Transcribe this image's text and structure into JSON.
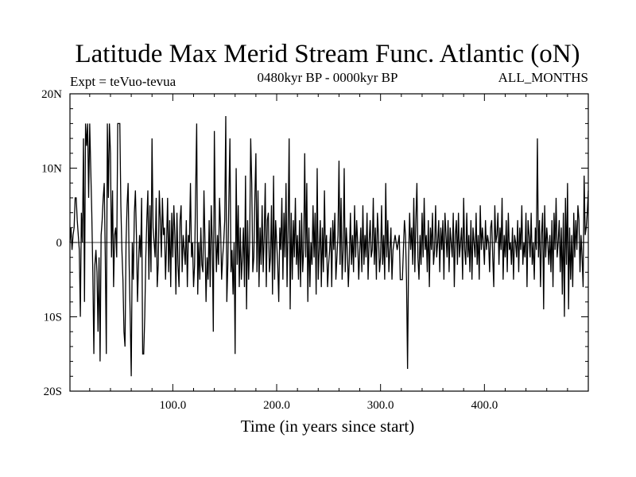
{
  "chart_data": {
    "type": "line",
    "title": "Latitude Max Merid Stream Func. Atlantic (oN)",
    "left_subtitle": "Expt = teVuo-tevua",
    "center_subtitle": "0480kyr BP - 0000kyr BP",
    "right_subtitle": "ALL_MONTHS",
    "xlabel": "Time (in years since start)",
    "ylabel": "",
    "xlim": [
      1,
      500
    ],
    "ylim": [
      -20,
      20
    ],
    "x_ticks": [
      {
        "value": 100,
        "label": "100.0"
      },
      {
        "value": 200,
        "label": "200.0"
      },
      {
        "value": 300,
        "label": "300.0"
      },
      {
        "value": 400,
        "label": "400.0"
      }
    ],
    "y_ticks": [
      {
        "value": 20,
        "label": "20N"
      },
      {
        "value": 10,
        "label": "10N"
      },
      {
        "value": 0,
        "label": "0"
      },
      {
        "value": -10,
        "label": "10S"
      },
      {
        "value": -20,
        "label": "20S"
      }
    ],
    "zero_line": true,
    "grid": false,
    "line_color": "#000000",
    "x_start": 1,
    "x_step": 1,
    "values": [
      0,
      2,
      -1,
      1,
      2,
      6,
      6,
      3,
      1,
      -1,
      -10,
      4,
      0,
      14,
      -8,
      16,
      13,
      16,
      6,
      16,
      10,
      4,
      -4,
      -15,
      -3,
      -1,
      -4,
      -12,
      -2,
      -16,
      1,
      3,
      6,
      8,
      -2,
      -15,
      16,
      6,
      16,
      12,
      -2,
      7,
      -6,
      1,
      2,
      -2,
      16,
      16,
      16,
      5,
      -1,
      -5,
      -12,
      -14,
      0,
      5,
      8,
      -3,
      -10,
      -18,
      0,
      -5,
      4,
      7,
      1,
      -8,
      -3,
      1,
      -2,
      6,
      -15,
      -15,
      -10,
      -2,
      3,
      7,
      -5,
      5,
      -4,
      14,
      2,
      0,
      -2,
      6,
      -6,
      -3,
      7,
      3,
      -2,
      6,
      1,
      2,
      -5,
      0,
      6,
      -4,
      3,
      -6,
      4,
      -2,
      5,
      1,
      -7,
      4,
      -3,
      -6,
      3,
      5,
      -4,
      1,
      -1,
      -3,
      3,
      -6,
      1,
      0,
      8,
      -2,
      0,
      -6,
      -3,
      7,
      16,
      -7,
      0,
      -5,
      2,
      -3,
      -4,
      7,
      0,
      -8,
      -2,
      -5,
      3,
      -6,
      5,
      0,
      -12,
      15,
      2,
      -4,
      1,
      -3,
      6,
      2,
      -5,
      -2,
      0,
      3,
      17,
      -8,
      -3,
      6,
      14,
      -4,
      -1,
      -7,
      0,
      -15,
      10,
      -3,
      5,
      -6,
      2,
      -5,
      -2,
      2,
      -6,
      9,
      -9,
      3,
      -5,
      0,
      14,
      8,
      -4,
      -2,
      6,
      12,
      -4,
      7,
      -6,
      2,
      -3,
      5,
      -4,
      1,
      8,
      -6,
      3,
      4,
      -4,
      -2,
      5,
      -7,
      9,
      -5,
      3,
      0,
      -3,
      -8,
      2,
      -1,
      6,
      -5,
      4,
      -2,
      8,
      -6,
      2,
      14,
      -9,
      4,
      -5,
      3,
      -2,
      6,
      -3,
      1,
      -5,
      3,
      -6,
      4,
      -4,
      -1,
      12,
      -2,
      8,
      -8,
      2,
      -6,
      0,
      -3,
      5,
      -2,
      4,
      -7,
      10,
      -5,
      -1,
      3,
      -6,
      2,
      -4,
      7,
      -2,
      1,
      -6,
      -3,
      -1,
      2,
      -6,
      3,
      -1,
      4,
      -5,
      -2,
      1,
      11,
      -3,
      6,
      -5,
      -1,
      10,
      -4,
      2,
      -1,
      -6,
      -2,
      4,
      -3,
      1,
      -4,
      5,
      -2,
      3,
      0,
      -5,
      -1,
      2,
      -4,
      5,
      -3,
      1,
      -2,
      4,
      -5,
      0,
      3,
      -2,
      -1,
      6,
      -3,
      2,
      -5,
      4,
      1,
      -4,
      -2,
      5,
      -3,
      1,
      -5,
      8,
      -2,
      3,
      -4,
      -1,
      2,
      -5,
      -1,
      0,
      1,
      0,
      -1,
      0,
      1,
      -5,
      -5,
      -5,
      -1,
      3,
      1,
      -5,
      -17,
      -2,
      4,
      -1,
      2,
      -3,
      6,
      -4,
      3,
      8,
      -2,
      -5,
      1,
      -3,
      4,
      -2,
      6,
      -1,
      1,
      -4,
      3,
      -6,
      2,
      -1,
      4,
      -3,
      -1,
      5,
      -2,
      0,
      3,
      -4,
      2,
      -1,
      3,
      -5,
      4,
      1,
      -2,
      3,
      -4,
      2,
      0,
      -2,
      4,
      -6,
      1,
      3,
      -3,
      4,
      -2,
      0,
      2,
      -5,
      6,
      -1,
      -3,
      4,
      -2,
      1,
      -4,
      3,
      -5,
      2,
      0,
      -2,
      4,
      -3,
      1,
      -5,
      5,
      -1,
      2,
      0,
      -3,
      3,
      -1,
      1,
      0,
      -4,
      2,
      3,
      -2,
      -6,
      5,
      0,
      1,
      4,
      -3,
      2,
      -1,
      6,
      -5,
      1,
      -2,
      3,
      -4,
      4,
      -1,
      0,
      -3,
      2,
      -5,
      1,
      0,
      -2,
      3,
      -4,
      2,
      -1,
      5,
      -3,
      0,
      -2,
      4,
      -6,
      3,
      1,
      -2,
      4,
      -3,
      0,
      -5,
      2,
      -1,
      14,
      -2,
      3,
      -6,
      1,
      4,
      -9,
      5,
      -2,
      2,
      0,
      -3,
      1,
      -4,
      3,
      -6,
      4,
      -1,
      6,
      -2,
      0,
      3,
      -4,
      2,
      -7,
      4,
      -10,
      6,
      -3,
      8,
      -9,
      2,
      -5,
      1,
      -6,
      4,
      -2,
      3,
      -1,
      5,
      3,
      -4,
      1,
      -2,
      -6,
      9,
      1,
      2,
      4,
      7
    ]
  }
}
